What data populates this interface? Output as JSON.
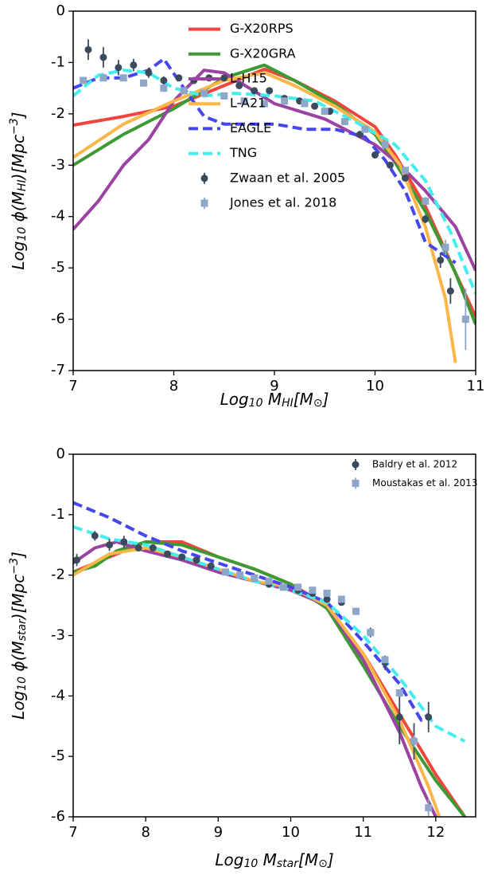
{
  "chart_data": [
    {
      "type": "line",
      "xlim": [
        7,
        11
      ],
      "ylim": [
        -7,
        0
      ],
      "xticks": [
        7,
        8,
        9,
        10,
        11
      ],
      "yticks": [
        -7,
        -6,
        -5,
        -4,
        -3,
        -2,
        -1,
        0
      ],
      "xlabel": [
        {
          "text": "Log",
          "pos": "base"
        },
        {
          "text": "10",
          "pos": "sub"
        },
        {
          "text": " M",
          "pos": "base"
        },
        {
          "text": "HI",
          "pos": "sub"
        },
        {
          "text": "[M",
          "pos": "base"
        },
        {
          "text": "⊙",
          "pos": "sub"
        },
        {
          "text": "]",
          "pos": "base"
        }
      ],
      "ylabel": [
        {
          "text": "Log",
          "pos": "base"
        },
        {
          "text": "10",
          "pos": "sub"
        },
        {
          "text": " ϕ(M",
          "pos": "base"
        },
        {
          "text": "HI",
          "pos": "sub"
        },
        {
          "text": ")[Mpc",
          "pos": "base"
        },
        {
          "text": "−3",
          "pos": "sup"
        },
        {
          "text": "]",
          "pos": "base"
        }
      ],
      "legend": "lower center",
      "series": [
        {
          "name": "G-X20RPS",
          "color": "#f0453c",
          "kind": "line",
          "style": "solid",
          "x": [
            7,
            7.5,
            8,
            8.5,
            8.9,
            9.2,
            9.6,
            10,
            10.2,
            10.5,
            10.8,
            11
          ],
          "values": [
            -2.22,
            -2.05,
            -1.85,
            -1.45,
            -1.13,
            -1.35,
            -1.75,
            -2.25,
            -2.8,
            -3.8,
            -5.1,
            -5.95
          ]
        },
        {
          "name": "G-X20GRA",
          "color": "#3d9a32",
          "kind": "line",
          "style": "solid",
          "x": [
            7,
            7.5,
            8,
            8.5,
            8.9,
            9.2,
            9.6,
            10,
            10.2,
            10.5,
            10.8,
            11
          ],
          "values": [
            -3.0,
            -2.4,
            -1.9,
            -1.3,
            -1.05,
            -1.35,
            -1.8,
            -2.4,
            -2.95,
            -3.9,
            -5.1,
            -6.1
          ]
        },
        {
          "name": "L-H15",
          "color": "#9b42a2",
          "kind": "line",
          "style": "solid",
          "x": [
            7,
            7.25,
            7.5,
            7.75,
            8,
            8.3,
            8.5,
            8.75,
            9,
            9.5,
            10,
            10.25,
            10.5,
            10.8,
            11
          ],
          "values": [
            -4.25,
            -3.7,
            -3.0,
            -2.5,
            -1.75,
            -1.15,
            -1.2,
            -1.5,
            -1.8,
            -2.1,
            -2.6,
            -3.0,
            -3.5,
            -4.2,
            -5.05
          ]
        },
        {
          "name": "L-A21",
          "color": "#fbb648",
          "kind": "line",
          "style": "solid",
          "x": [
            7,
            7.5,
            8,
            8.5,
            8.9,
            9.2,
            9.6,
            10,
            10.25,
            10.5,
            10.7,
            10.8
          ],
          "values": [
            -2.85,
            -2.2,
            -1.75,
            -1.35,
            -1.2,
            -1.45,
            -1.85,
            -2.35,
            -3.0,
            -4.2,
            -5.6,
            -6.85
          ]
        },
        {
          "name": "EAGLE",
          "color": "#4646ee",
          "kind": "line",
          "style": "dashed",
          "x": [
            7,
            7.25,
            7.5,
            7.75,
            7.9,
            8.1,
            8.3,
            8.5,
            8.75,
            9,
            9.3,
            9.6,
            9.9,
            10.1,
            10.3,
            10.5,
            10.8
          ],
          "values": [
            -1.5,
            -1.3,
            -1.3,
            -1.15,
            -0.93,
            -1.5,
            -2.05,
            -2.2,
            -2.2,
            -2.2,
            -2.3,
            -2.3,
            -2.45,
            -2.9,
            -3.5,
            -4.5,
            -4.9
          ]
        },
        {
          "name": "TNG",
          "color": "#44eef0",
          "kind": "line",
          "style": "dashed",
          "x": [
            7,
            7.25,
            7.5,
            7.75,
            8,
            8.3,
            8.6,
            9,
            9.4,
            9.8,
            10.2,
            10.5,
            10.75,
            11
          ],
          "values": [
            -1.65,
            -1.25,
            -1.15,
            -1.2,
            -1.5,
            -1.65,
            -1.6,
            -1.65,
            -1.75,
            -2.15,
            -2.6,
            -3.3,
            -4.3,
            -5.5
          ]
        },
        {
          "name": "Zwaan et al. 2005",
          "color": "#3b4a5c",
          "kind": "errorbar",
          "marker": "circle",
          "x": [
            7.15,
            7.3,
            7.45,
            7.6,
            7.75,
            7.9,
            8.05,
            8.2,
            8.35,
            8.5,
            8.65,
            8.8,
            8.95,
            9.1,
            9.25,
            9.4,
            9.55,
            9.7,
            9.85,
            10.0,
            10.15,
            10.3,
            10.5,
            10.65,
            10.75
          ],
          "values": [
            -0.75,
            -0.9,
            -1.1,
            -1.05,
            -1.2,
            -1.35,
            -1.3,
            -1.35,
            -1.3,
            -1.3,
            -1.45,
            -1.55,
            -1.55,
            -1.7,
            -1.75,
            -1.85,
            -1.95,
            -2.15,
            -2.4,
            -2.8,
            -3.0,
            -3.25,
            -4.05,
            -4.85,
            -5.45
          ],
          "errors": [
            0.2,
            0.2,
            0.15,
            0.12,
            0.1,
            0.08,
            0.06,
            0.05,
            0.05,
            0.05,
            0.05,
            0.05,
            0.05,
            0.05,
            0.05,
            0.05,
            0.05,
            0.05,
            0.05,
            0.05,
            0.05,
            0.06,
            0.08,
            0.15,
            0.25
          ]
        },
        {
          "name": "Jones et al. 2018",
          "color": "#8ea6c8",
          "kind": "errorbar",
          "marker": "square",
          "x": [
            7.1,
            7.3,
            7.5,
            7.7,
            7.9,
            8.1,
            8.3,
            8.5,
            8.7,
            8.9,
            9.1,
            9.3,
            9.5,
            9.7,
            9.9,
            10.1,
            10.3,
            10.5,
            10.7,
            10.9
          ],
          "values": [
            -1.35,
            -1.3,
            -1.3,
            -1.4,
            -1.5,
            -1.55,
            -1.6,
            -1.65,
            -1.75,
            -1.8,
            -1.75,
            -1.8,
            -1.95,
            -2.15,
            -2.3,
            -2.6,
            -3.1,
            -3.7,
            -4.6,
            -6.0
          ],
          "errors": [
            0.05,
            0.05,
            0.05,
            0.05,
            0.05,
            0.05,
            0.05,
            0.05,
            0.05,
            0.05,
            0.05,
            0.05,
            0.05,
            0.05,
            0.05,
            0.05,
            0.05,
            0.08,
            0.15,
            0.6
          ]
        }
      ]
    },
    {
      "type": "line",
      "xlim": [
        7,
        12.55
      ],
      "ylim": [
        -6,
        0
      ],
      "xticks": [
        7,
        8,
        9,
        10,
        11,
        12
      ],
      "yticks": [
        -6,
        -5,
        -4,
        -3,
        -2,
        -1,
        0
      ],
      "xlabel": [
        {
          "text": "Log",
          "pos": "base"
        },
        {
          "text": "10",
          "pos": "sub"
        },
        {
          "text": " M",
          "pos": "base"
        },
        {
          "text": "star",
          "pos": "sub"
        },
        {
          "text": "[M",
          "pos": "base"
        },
        {
          "text": "⊙",
          "pos": "sub"
        },
        {
          "text": "]",
          "pos": "base"
        }
      ],
      "ylabel": [
        {
          "text": "Log",
          "pos": "base"
        },
        {
          "text": "10",
          "pos": "sub"
        },
        {
          "text": " ϕ(M",
          "pos": "base"
        },
        {
          "text": "star",
          "pos": "sub"
        },
        {
          "text": ")[Mpc",
          "pos": "base"
        },
        {
          "text": "−3",
          "pos": "sup"
        },
        {
          "text": "]",
          "pos": "base"
        }
      ],
      "legend": "upper right",
      "series": [
        {
          "color": "#f0453c",
          "kind": "line",
          "style": "solid",
          "x": [
            7,
            7.5,
            8,
            8.5,
            9,
            9.5,
            10,
            10.5,
            11,
            11.5,
            12,
            12.4
          ],
          "values": [
            -1.95,
            -1.7,
            -1.45,
            -1.45,
            -1.7,
            -1.9,
            -2.15,
            -2.5,
            -3.3,
            -4.3,
            -5.3,
            -6.0
          ]
        },
        {
          "color": "#3d9a32",
          "kind": "line",
          "style": "solid",
          "x": [
            7,
            7.3,
            7.6,
            8,
            8.5,
            9,
            9.5,
            10,
            10.5,
            11,
            11.5,
            12,
            12.4
          ],
          "values": [
            -1.95,
            -1.85,
            -1.6,
            -1.45,
            -1.5,
            -1.7,
            -1.9,
            -2.15,
            -2.55,
            -3.5,
            -4.5,
            -5.4,
            -6.0
          ]
        },
        {
          "color": "#9b42a2",
          "kind": "line",
          "style": "solid",
          "x": [
            7,
            7.3,
            7.6,
            8,
            8.5,
            9,
            9.5,
            10,
            10.5,
            11,
            11.5,
            11.8,
            12
          ],
          "values": [
            -1.8,
            -1.55,
            -1.45,
            -1.6,
            -1.75,
            -1.95,
            -2.1,
            -2.25,
            -2.5,
            -3.4,
            -4.6,
            -5.5,
            -6.0
          ]
        },
        {
          "color": "#fbb648",
          "kind": "line",
          "style": "solid",
          "x": [
            7,
            7.5,
            8,
            8.5,
            9,
            9.5,
            10,
            10.5,
            11,
            11.5,
            11.9,
            12.05
          ],
          "values": [
            -2.0,
            -1.65,
            -1.55,
            -1.7,
            -1.9,
            -2.1,
            -2.2,
            -2.5,
            -3.3,
            -4.4,
            -5.5,
            -6.0
          ]
        },
        {
          "color": "#4646ee",
          "kind": "line",
          "style": "dashed",
          "x": [
            7,
            7.5,
            8,
            8.5,
            9,
            9.5,
            10,
            10.5,
            11,
            11.5,
            11.8,
            11.9
          ],
          "values": [
            -0.8,
            -1.05,
            -1.35,
            -1.6,
            -1.8,
            -2.0,
            -2.2,
            -2.45,
            -3.1,
            -3.8,
            -4.4,
            -4.3
          ]
        },
        {
          "color": "#44eef0",
          "kind": "line",
          "style": "dashed",
          "x": [
            7,
            7.5,
            8,
            8.5,
            9,
            9.5,
            10,
            10.5,
            11,
            11.5,
            12,
            12.4
          ],
          "values": [
            -1.2,
            -1.4,
            -1.5,
            -1.7,
            -1.9,
            -2.1,
            -2.25,
            -2.45,
            -3.0,
            -3.7,
            -4.5,
            -4.75
          ]
        },
        {
          "name": "Baldry et al. 2012",
          "color": "#3b4a5c",
          "kind": "errorbar",
          "marker": "circle",
          "x": [
            7.05,
            7.3,
            7.5,
            7.7,
            7.9,
            8.1,
            8.3,
            8.5,
            8.7,
            8.9,
            9.1,
            9.3,
            9.5,
            9.7,
            9.9,
            10.1,
            10.3,
            10.5,
            10.7,
            10.9,
            11.1,
            11.3,
            11.5,
            11.7,
            11.9
          ],
          "values": [
            -1.75,
            -1.35,
            -1.5,
            -1.45,
            -1.55,
            -1.55,
            -1.65,
            -1.7,
            -1.75,
            -1.85,
            -1.95,
            -2.0,
            -2.05,
            -2.15,
            -2.2,
            -2.25,
            -2.3,
            -2.4,
            -2.45,
            -2.6,
            -2.95,
            -3.45,
            -4.35,
            -4.75,
            -4.35
          ],
          "errors": [
            0.1,
            0.08,
            0.1,
            0.1,
            0.06,
            0.05,
            0.05,
            0.05,
            0.05,
            0.05,
            0.05,
            0.05,
            0.05,
            0.05,
            0.05,
            0.05,
            0.05,
            0.05,
            0.05,
            0.05,
            0.08,
            0.12,
            0.45,
            0.3,
            0.25
          ]
        },
        {
          "name": "Moustakas et al. 2013",
          "color": "#8ea6c8",
          "kind": "errorbar",
          "marker": "square",
          "x": [
            9.1,
            9.3,
            9.5,
            9.7,
            9.9,
            10.1,
            10.3,
            10.5,
            10.7,
            10.9,
            11.1,
            11.3,
            11.5,
            11.7,
            11.9
          ],
          "values": [
            -1.95,
            -2.0,
            -2.05,
            -2.1,
            -2.2,
            -2.2,
            -2.25,
            -2.3,
            -2.4,
            -2.6,
            -2.95,
            -3.4,
            -3.95,
            -4.75,
            -5.85
          ],
          "errors": [
            0.04,
            0.04,
            0.04,
            0.04,
            0.04,
            0.04,
            0.04,
            0.04,
            0.04,
            0.04,
            0.05,
            0.05,
            0.06,
            0.1,
            0.15
          ]
        }
      ]
    }
  ]
}
